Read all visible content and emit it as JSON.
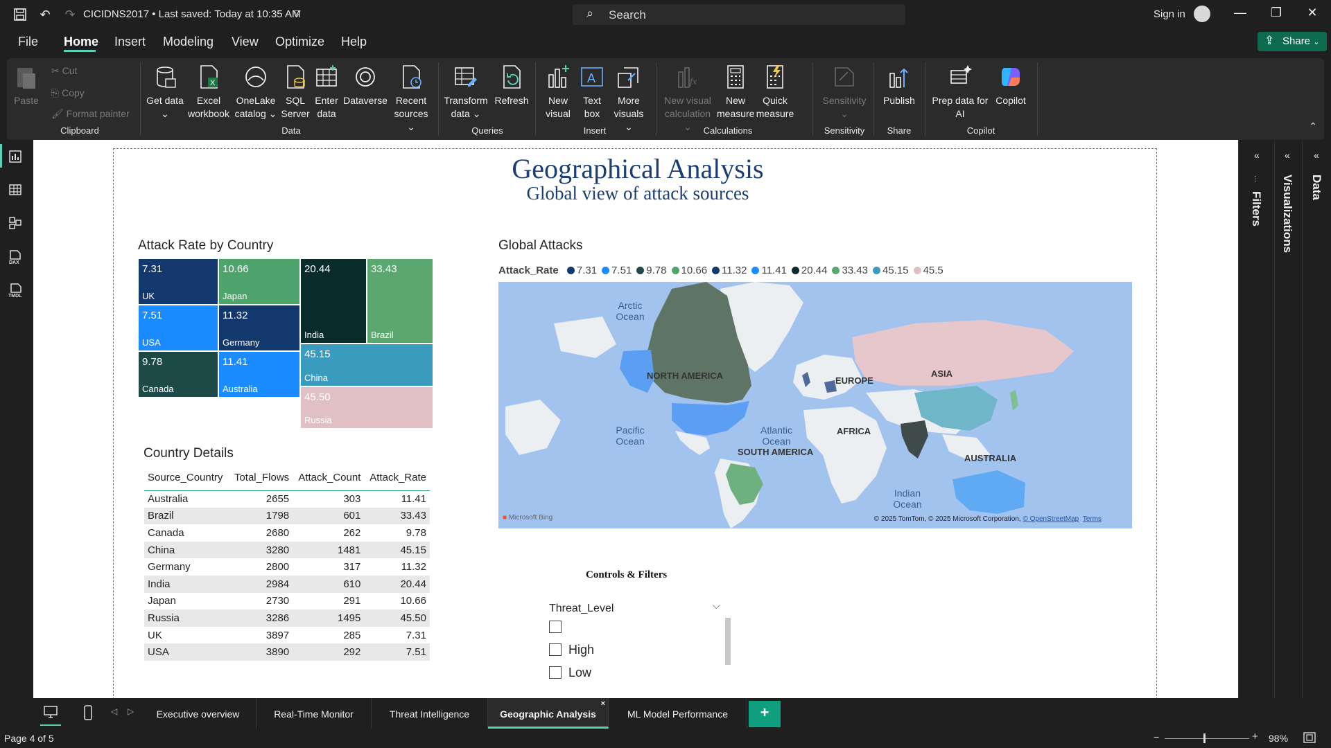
{
  "titlebar": {
    "doc_title": "CICIDNS2017 • Last saved: Today at 10:35 AM",
    "search_label": "Search",
    "sign_in": "Sign in"
  },
  "menu": {
    "items": [
      "File",
      "Home",
      "Insert",
      "Modeling",
      "View",
      "Optimize",
      "Help"
    ],
    "active": "Home",
    "share": "Share"
  },
  "ribbon": {
    "clipboard": {
      "paste": "Paste",
      "cut": "Cut",
      "copy": "Copy",
      "format_painter": "Format painter",
      "label": "Clipboard"
    },
    "data": {
      "get_data": "Get data",
      "excel": "Excel workbook",
      "onelake": "OneLake catalog",
      "sql": "SQL Server",
      "enter_data": "Enter data",
      "dataverse": "Dataverse",
      "recent": "Recent sources",
      "label": "Data"
    },
    "queries": {
      "transform": "Transform data",
      "refresh": "Refresh",
      "label": "Queries"
    },
    "insert": {
      "new_visual": "New visual",
      "text_box": "Text box",
      "more_visuals": "More visuals",
      "label": "Insert"
    },
    "calculations": {
      "new_visual_calc": "New visual calculation",
      "new_measure": "New measure",
      "quick_measure": "Quick measure",
      "label": "Calculations"
    },
    "sensitivity": {
      "sensitivity": "Sensitivity",
      "label": "Sensitivity"
    },
    "share": {
      "publish": "Publish",
      "label": "Share"
    },
    "copilot": {
      "prep": "Prep data for AI",
      "copilot": "Copilot",
      "label": "Copilot"
    }
  },
  "report": {
    "title": "Geographical Analysis",
    "subtitle": "Global view of attack sources",
    "treemap_title": "Attack Rate by Country",
    "map_title": "Global Attacks",
    "table_title": "Country Details",
    "controls_title": "Controls & Filters"
  },
  "treemap": [
    {
      "country": "UK",
      "value": "7.31",
      "color": "#12386e"
    },
    {
      "country": "Japan",
      "value": "10.66",
      "color": "#4fa36d"
    },
    {
      "country": "India",
      "value": "20.44",
      "color": "#0a2b2b"
    },
    {
      "country": "Brazil",
      "value": "33.43",
      "color": "#5aa86f"
    },
    {
      "country": "USA",
      "value": "7.51",
      "color": "#1a8cff"
    },
    {
      "country": "Germany",
      "value": "11.32",
      "color": "#12386e"
    },
    {
      "country": "China",
      "value": "45.15",
      "color": "#3a9bbf"
    },
    {
      "country": "Canada",
      "value": "9.78",
      "color": "#1d4a46"
    },
    {
      "country": "Australia",
      "value": "11.41",
      "color": "#1a8cff"
    },
    {
      "country": "Russia",
      "value": "45.50",
      "color": "#e0c0c4"
    }
  ],
  "map": {
    "legend_title": "Attack_Rate",
    "legend": [
      {
        "label": "7.31",
        "color": "#12386e"
      },
      {
        "label": "7.51",
        "color": "#1a8cff"
      },
      {
        "label": "9.78",
        "color": "#1d4a46"
      },
      {
        "label": "10.66",
        "color": "#4fa36d"
      },
      {
        "label": "11.32",
        "color": "#12386e"
      },
      {
        "label": "11.41",
        "color": "#1a8cff"
      },
      {
        "label": "20.44",
        "color": "#0a2b2b"
      },
      {
        "label": "33.43",
        "color": "#5aa86f"
      },
      {
        "label": "45.15",
        "color": "#3a9bbf"
      },
      {
        "label": "45.5",
        "color": "#e0c0c4"
      }
    ],
    "region_labels": {
      "north_america": "NORTH AMERICA",
      "europe": "EUROPE",
      "asia": "ASIA",
      "africa": "AFRICA",
      "south_america": "SOUTH AMERICA",
      "australia": "AUSTRALIA"
    },
    "ocean_labels": {
      "arctic": "Arctic Ocean",
      "pacific": "Pacific Ocean",
      "atlantic": "Atlantic Ocean",
      "indian": "Indian Ocean"
    },
    "credit": "© 2025 TomTom, © 2025 Microsoft Corporation,",
    "osm": "© OpenStreetMap",
    "terms": "Terms",
    "bing": "Microsoft Bing"
  },
  "table": {
    "columns": [
      "Source_Country",
      "Total_Flows",
      "Attack_Count",
      "Attack_Rate"
    ],
    "rows": [
      [
        "Australia",
        "2655",
        "303",
        "11.41"
      ],
      [
        "Brazil",
        "1798",
        "601",
        "33.43"
      ],
      [
        "Canada",
        "2680",
        "262",
        "9.78"
      ],
      [
        "China",
        "3280",
        "1481",
        "45.15"
      ],
      [
        "Germany",
        "2800",
        "317",
        "11.32"
      ],
      [
        "India",
        "2984",
        "610",
        "20.44"
      ],
      [
        "Japan",
        "2730",
        "291",
        "10.66"
      ],
      [
        "Russia",
        "3286",
        "1495",
        "45.50"
      ],
      [
        "UK",
        "3897",
        "285",
        "7.31"
      ],
      [
        "USA",
        "3890",
        "292",
        "7.51"
      ]
    ]
  },
  "slicer": {
    "title": "Threat_Level",
    "options": [
      "",
      "High",
      "Low"
    ]
  },
  "panes": {
    "filters": "Filters",
    "visualizations": "Visualizations",
    "data": "Data"
  },
  "tabs": {
    "pages": [
      "Executive overview",
      "Real-Time Monitor",
      "Threat Intelligence",
      "Geographic Analysis",
      "ML Model Performance"
    ],
    "active": "Geographic Analysis",
    "add": "+"
  },
  "status": {
    "page": "Page 4 of 5",
    "zoom": "98%"
  }
}
